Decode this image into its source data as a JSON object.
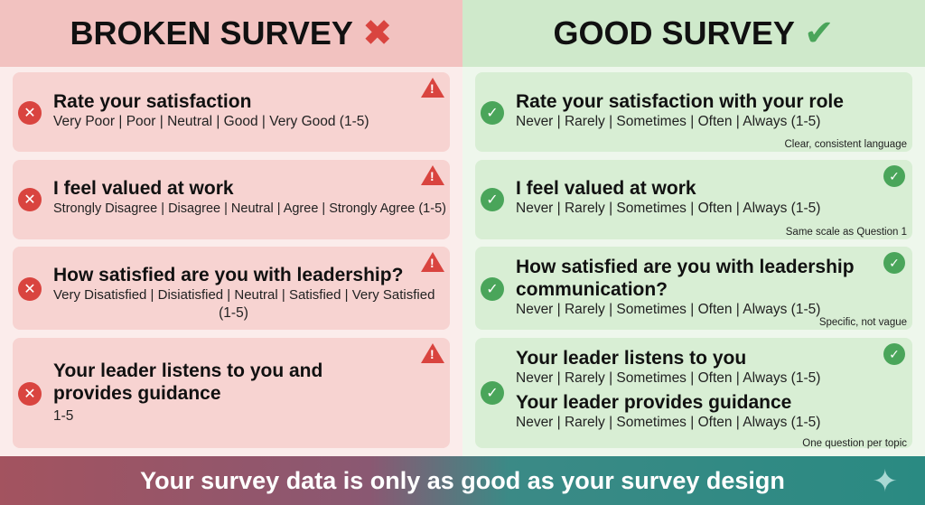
{
  "broken": {
    "title": "BROKEN SURVEY",
    "title_icon": "x-mark-icon",
    "color": "#d9443f",
    "items": [
      {
        "question": "Rate your satisfaction",
        "scale": "Very Poor | Poor | Neutral | Good | Very Good (1-5)"
      },
      {
        "question": "I feel valued at work",
        "scale": "Strongly Disagree | Disagree | Neutral | Agree | Strongly Agree (1-5)"
      },
      {
        "question": "How satisfied are you with leadership?",
        "scale": "Very Disatisfied | Disiatisfied | Neutral | Satisfied | Very Satisfied",
        "scale2": "(1-5)"
      },
      {
        "question": "Your leader listens to you and provides guidance",
        "scale": "1-5"
      }
    ]
  },
  "good": {
    "title": "GOOD SURVEY",
    "title_icon": "check-mark-icon",
    "color": "#4aa55a",
    "items": [
      {
        "question": "Rate your satisfaction with your role",
        "scale": "Never | Rarely | Sometimes | Often | Always (1-5)",
        "note": "Clear, consistent language"
      },
      {
        "question": "I feel valued at work",
        "scale": "Never | Rarely | Sometimes | Often | Always (1-5)",
        "note": "Same scale as Question 1"
      },
      {
        "question": "How satisfied are you with leadership communication?",
        "scale": "Never | Rarely | Sometimes | Often | Always (1-5)",
        "note": "Specific, not vague"
      },
      {
        "question": "Your leader listens to you",
        "scale": "Never | Rarely | Sometimes | Often | Always (1-5)",
        "question2": "Your leader provides guidance",
        "scale2": "Never | Rarely | Sometimes | Often | Always (1-5)",
        "note": "One question per topic"
      }
    ]
  },
  "footer": {
    "text": "Your survey data is only as good as your survey design",
    "icon": "sparkle-icon"
  }
}
